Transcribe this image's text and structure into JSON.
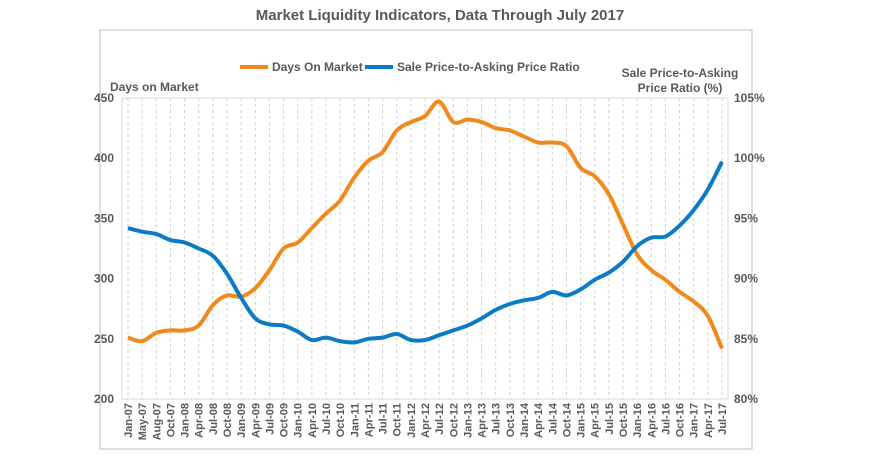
{
  "chart_data": {
    "type": "line",
    "title": "Market Liquidity Indicators, Data Through July 2017",
    "ylabel_left": "Days on Market",
    "ylabel_right": "Sale Price-to-Asking Price Ratio (%)",
    "ylim_left": [
      200,
      450
    ],
    "yticks_left": [
      "200",
      "250",
      "300",
      "350",
      "400",
      "450"
    ],
    "ylim_right": [
      80,
      105
    ],
    "yticks_right": [
      "80%",
      "85%",
      "90%",
      "95%",
      "100%",
      "105%"
    ],
    "legend_placement": "top-center",
    "grid": "vertical dashed",
    "categories": [
      "Jan-07",
      "May-07",
      "Aug-07",
      "Oct-07",
      "Jan-08",
      "Apr-08",
      "Jul-08",
      "Oct-08",
      "Jan-09",
      "Apr-09",
      "Jul-09",
      "Oct-09",
      "Jan-10",
      "Apr-10",
      "Jul-10",
      "Oct-10",
      "Jan-11",
      "Apr-11",
      "Jul-11",
      "Oct-11",
      "Jan-12",
      "Apr-12",
      "Jul-12",
      "Oct-12",
      "Jan-13",
      "Apr-13",
      "Jul-13",
      "Oct-13",
      "Jan-14",
      "Apr-14",
      "Jul-14",
      "Oct-14",
      "Jan-15",
      "Apr-15",
      "Jul-15",
      "Oct-15",
      "Jan-16",
      "Apr-16",
      "Jul-16",
      "Oct-16",
      "Jan-17",
      "Apr-17",
      "Jul-17"
    ],
    "series": [
      {
        "name": "Days On Market",
        "axis": "left",
        "color": "#F08A1C",
        "values": [
          251,
          248,
          255,
          257,
          257,
          261,
          278,
          286,
          285,
          292,
          307,
          325,
          330,
          342,
          354,
          365,
          384,
          398,
          405,
          423,
          430,
          435,
          447,
          430,
          432,
          430,
          425,
          423,
          418,
          413,
          413,
          410,
          392,
          385,
          370,
          345,
          320,
          307,
          299,
          289,
          281,
          269,
          242
        ]
      },
      {
        "name": "Sale Price-to-Asking Price Ratio",
        "axis": "right",
        "color": "#0C7BC6",
        "values": [
          94.2,
          93.9,
          93.7,
          93.2,
          93.0,
          92.5,
          91.9,
          90.4,
          88.4,
          86.7,
          86.2,
          86.1,
          85.6,
          84.9,
          85.1,
          84.8,
          84.7,
          85.0,
          85.1,
          85.4,
          84.9,
          84.9,
          85.3,
          85.7,
          86.1,
          86.7,
          87.4,
          87.9,
          88.2,
          88.4,
          88.9,
          88.6,
          89.1,
          89.9,
          90.5,
          91.4,
          92.7,
          93.4,
          93.5,
          94.4,
          95.7,
          97.4,
          99.7
        ]
      }
    ]
  }
}
